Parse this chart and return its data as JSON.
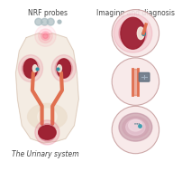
{
  "title_left": "NRF probes",
  "title_right": "Imaging and diagnosis",
  "subtitle": "The Urinary system",
  "bg_color": "#ffffff",
  "title_fontsize": 5.5,
  "subtitle_fontsize": 5.5,
  "body_outline_color": "#e8d5c4",
  "kidney_color": "#9b1c2e",
  "kidney_glow": "#e05070",
  "ureter_color": "#e07050",
  "bladder_color": "#9b1c2e",
  "pelvis_color": "#e8d5c4",
  "probe_color": "#aabbc0",
  "glow_color": "#ff6080",
  "circle_edge_color": "#c8a0a0",
  "circle_bg": "#f8e8e8"
}
